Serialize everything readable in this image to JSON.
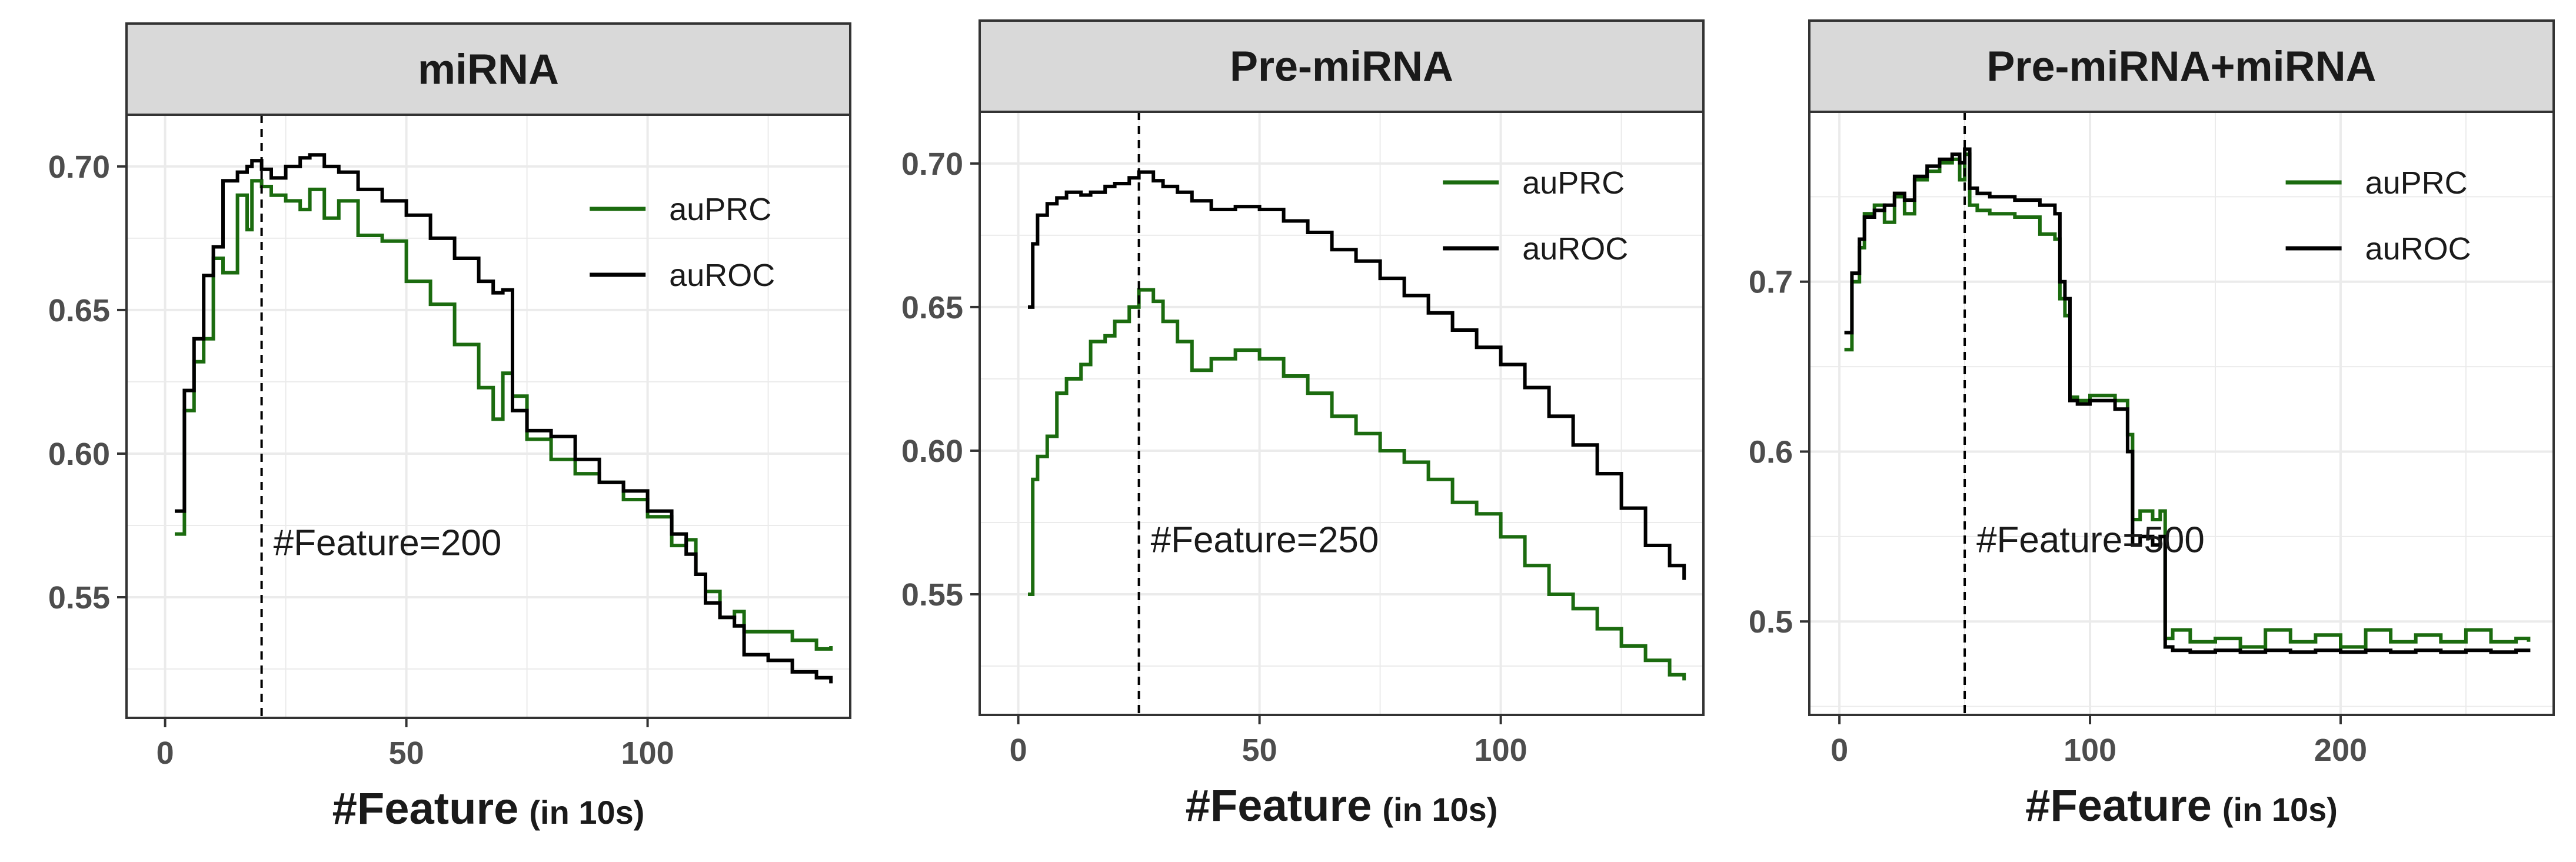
{
  "colors": {
    "auPRC": "#1b6b0f",
    "auROC": "#000000",
    "strip": "#d9d9d9",
    "grid": "#ebebeb"
  },
  "chart_data": [
    {
      "type": "line",
      "title": "miRNA",
      "xlabel": "#Feature",
      "xlabel_suffix": "(in 10s)",
      "xlim": [
        -8,
        142
      ],
      "ylim": [
        0.508,
        0.718
      ],
      "xticks": [
        0,
        50,
        100
      ],
      "yticks": [
        0.55,
        0.6,
        0.65,
        0.7
      ],
      "ytick_labels": [
        "0.55",
        "0.60",
        "0.65",
        "0.70"
      ],
      "grid": true,
      "legend_position": "top-right",
      "vline": 20,
      "annotation": "#Feature=200",
      "series": [
        {
          "name": "auPRC",
          "x": [
            2,
            4,
            6,
            8,
            10,
            12,
            15,
            17,
            18,
            20,
            22,
            25,
            28,
            30,
            33,
            36,
            40,
            45,
            50,
            55,
            60,
            65,
            68,
            70,
            72,
            75,
            80,
            85,
            90,
            95,
            100,
            105,
            108,
            110,
            112,
            115,
            118,
            120,
            125,
            130,
            135,
            138
          ],
          "y": [
            0.572,
            0.615,
            0.632,
            0.64,
            0.668,
            0.663,
            0.69,
            0.678,
            0.695,
            0.693,
            0.69,
            0.688,
            0.685,
            0.692,
            0.682,
            0.688,
            0.676,
            0.674,
            0.66,
            0.652,
            0.638,
            0.623,
            0.612,
            0.628,
            0.62,
            0.605,
            0.598,
            0.593,
            0.59,
            0.584,
            0.578,
            0.568,
            0.57,
            0.558,
            0.552,
            0.543,
            0.545,
            0.538,
            0.538,
            0.535,
            0.532,
            0.533
          ]
        },
        {
          "name": "auROC",
          "x": [
            2,
            4,
            6,
            8,
            10,
            12,
            15,
            17,
            18,
            20,
            22,
            25,
            28,
            30,
            33,
            36,
            40,
            45,
            50,
            55,
            60,
            65,
            68,
            70,
            72,
            75,
            80,
            85,
            90,
            95,
            100,
            105,
            108,
            110,
            112,
            115,
            118,
            120,
            125,
            130,
            135,
            138
          ],
          "y": [
            0.58,
            0.622,
            0.64,
            0.662,
            0.672,
            0.695,
            0.698,
            0.7,
            0.702,
            0.699,
            0.696,
            0.7,
            0.703,
            0.704,
            0.7,
            0.698,
            0.692,
            0.688,
            0.683,
            0.675,
            0.668,
            0.66,
            0.656,
            0.657,
            0.615,
            0.608,
            0.606,
            0.598,
            0.59,
            0.587,
            0.58,
            0.572,
            0.565,
            0.558,
            0.548,
            0.543,
            0.54,
            0.53,
            0.528,
            0.524,
            0.522,
            0.52
          ]
        }
      ]
    },
    {
      "type": "line",
      "title": "Pre-miRNA",
      "xlabel": "#Feature",
      "xlabel_suffix": "(in 10s)",
      "xlim": [
        -8,
        142
      ],
      "ylim": [
        0.508,
        0.718
      ],
      "xticks": [
        0,
        50,
        100
      ],
      "yticks": [
        0.55,
        0.6,
        0.65,
        0.7
      ],
      "ytick_labels": [
        "0.55",
        "0.60",
        "0.65",
        "0.70"
      ],
      "grid": true,
      "legend_position": "top-right",
      "vline": 25,
      "annotation": "#Feature=250",
      "series": [
        {
          "name": "auPRC",
          "x": [
            2,
            3,
            4,
            6,
            8,
            10,
            13,
            15,
            18,
            20,
            23,
            25,
            28,
            30,
            33,
            36,
            40,
            45,
            50,
            55,
            60,
            65,
            70,
            75,
            80,
            85,
            90,
            95,
            100,
            105,
            110,
            115,
            120,
            125,
            130,
            135,
            138
          ],
          "y": [
            0.55,
            0.59,
            0.598,
            0.605,
            0.62,
            0.625,
            0.63,
            0.638,
            0.64,
            0.645,
            0.65,
            0.656,
            0.652,
            0.645,
            0.638,
            0.628,
            0.632,
            0.635,
            0.632,
            0.626,
            0.62,
            0.612,
            0.606,
            0.6,
            0.596,
            0.59,
            0.582,
            0.578,
            0.57,
            0.56,
            0.55,
            0.545,
            0.538,
            0.532,
            0.527,
            0.522,
            0.52
          ]
        },
        {
          "name": "auROC",
          "x": [
            2,
            3,
            4,
            6,
            8,
            10,
            13,
            15,
            18,
            20,
            23,
            25,
            28,
            30,
            33,
            36,
            40,
            45,
            50,
            55,
            60,
            65,
            70,
            75,
            80,
            85,
            90,
            95,
            100,
            105,
            110,
            115,
            120,
            125,
            130,
            135,
            138
          ],
          "y": [
            0.65,
            0.672,
            0.682,
            0.686,
            0.688,
            0.69,
            0.689,
            0.69,
            0.692,
            0.693,
            0.695,
            0.697,
            0.694,
            0.692,
            0.69,
            0.687,
            0.684,
            0.685,
            0.684,
            0.68,
            0.676,
            0.67,
            0.666,
            0.66,
            0.654,
            0.648,
            0.642,
            0.636,
            0.63,
            0.622,
            0.612,
            0.602,
            0.592,
            0.58,
            0.567,
            0.56,
            0.555
          ]
        }
      ]
    },
    {
      "type": "line",
      "title": "Pre-miRNA+miRNA",
      "xlabel": "#Feature",
      "xlabel_suffix": "(in 10s)",
      "xlim": [
        -12,
        285
      ],
      "ylim": [
        0.445,
        0.8
      ],
      "xticks": [
        0,
        100,
        200
      ],
      "yticks": [
        0.5,
        0.6,
        0.7
      ],
      "ytick_labels": [
        "0.5",
        "0.6",
        "0.7"
      ],
      "grid": true,
      "legend_position": "top-right",
      "vline": 50,
      "annotation": "#Feature=500",
      "series": [
        {
          "name": "auPRC",
          "x": [
            2,
            5,
            8,
            10,
            14,
            18,
            22,
            26,
            30,
            35,
            40,
            45,
            48,
            50,
            52,
            55,
            60,
            70,
            80,
            86,
            88,
            90,
            92,
            95,
            100,
            110,
            115,
            117,
            120,
            125,
            128,
            130,
            133,
            140,
            150,
            160,
            170,
            180,
            190,
            200,
            210,
            220,
            230,
            240,
            250,
            260,
            270,
            275
          ],
          "y": [
            0.66,
            0.7,
            0.72,
            0.74,
            0.745,
            0.735,
            0.75,
            0.74,
            0.76,
            0.765,
            0.77,
            0.772,
            0.76,
            0.775,
            0.745,
            0.742,
            0.74,
            0.738,
            0.728,
            0.725,
            0.69,
            0.68,
            0.632,
            0.63,
            0.633,
            0.63,
            0.61,
            0.56,
            0.565,
            0.56,
            0.565,
            0.49,
            0.495,
            0.488,
            0.49,
            0.485,
            0.495,
            0.488,
            0.492,
            0.485,
            0.495,
            0.488,
            0.492,
            0.488,
            0.495,
            0.488,
            0.49,
            0.488
          ]
        },
        {
          "name": "auROC",
          "x": [
            2,
            5,
            8,
            10,
            14,
            18,
            22,
            26,
            30,
            35,
            40,
            45,
            48,
            50,
            52,
            55,
            60,
            70,
            80,
            86,
            88,
            90,
            92,
            95,
            100,
            110,
            115,
            117,
            120,
            125,
            128,
            130,
            133,
            140,
            150,
            160,
            170,
            180,
            190,
            200,
            210,
            220,
            230,
            240,
            250,
            260,
            270,
            275
          ],
          "y": [
            0.67,
            0.705,
            0.725,
            0.738,
            0.742,
            0.745,
            0.752,
            0.748,
            0.762,
            0.768,
            0.772,
            0.775,
            0.77,
            0.778,
            0.755,
            0.752,
            0.75,
            0.748,
            0.745,
            0.74,
            0.7,
            0.69,
            0.63,
            0.628,
            0.63,
            0.625,
            0.6,
            0.545,
            0.55,
            0.545,
            0.55,
            0.485,
            0.483,
            0.482,
            0.483,
            0.482,
            0.483,
            0.482,
            0.483,
            0.482,
            0.483,
            0.482,
            0.483,
            0.482,
            0.483,
            0.482,
            0.483,
            0.482
          ]
        }
      ]
    }
  ]
}
